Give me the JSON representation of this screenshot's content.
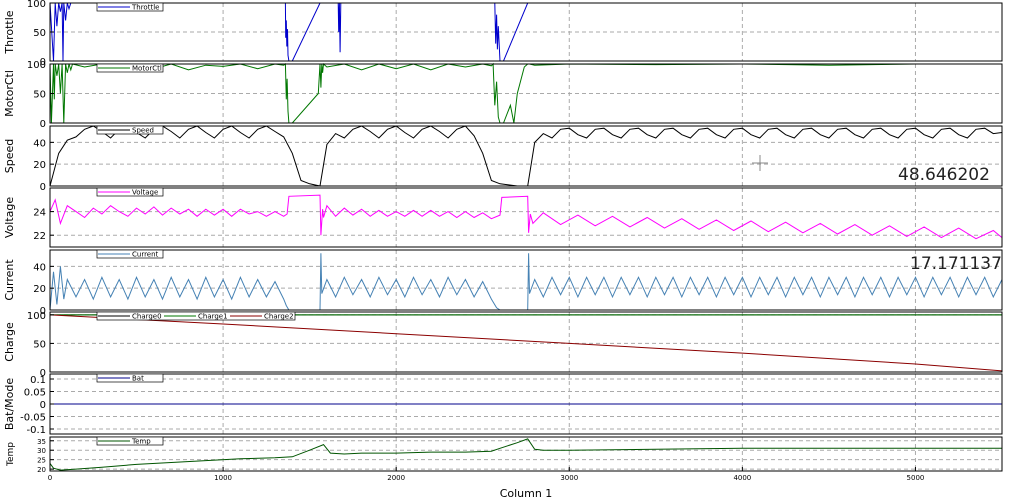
{
  "xlabel": "Column 1",
  "xlim": [
    0,
    5500
  ],
  "xticks": [
    0,
    1000,
    2000,
    3000,
    4000,
    5000
  ],
  "readouts": {
    "speed": "48.646202",
    "current": "17.171137"
  },
  "chart_data": [
    {
      "type": "line",
      "ylabel": "Throttle",
      "ylim": [
        0,
        100
      ],
      "yticks": [
        0,
        50,
        100
      ],
      "grid": true,
      "legend": "top-left",
      "series": [
        {
          "name": "Throttle",
          "color": "#0000cc",
          "x": [
            0,
            20,
            30,
            40,
            50,
            60,
            70,
            75,
            80,
            90,
            100,
            110,
            120,
            140,
            1360,
            1362,
            1365,
            1368,
            1372,
            1375,
            1380,
            1385,
            1400,
            1560,
            1665,
            1668,
            1672,
            1676,
            1680,
            1700,
            2570,
            2575,
            2580,
            2585,
            2590,
            2600,
            2610,
            2620,
            2760,
            5500
          ],
          "y": [
            100,
            0,
            100,
            60,
            100,
            85,
            100,
            0,
            100,
            70,
            100,
            90,
            100,
            100,
            100,
            40,
            70,
            25,
            55,
            10,
            0,
            0,
            0,
            100,
            100,
            50,
            100,
            15,
            100,
            100,
            100,
            30,
            80,
            20,
            60,
            0,
            0,
            0,
            100,
            100
          ]
        }
      ]
    },
    {
      "type": "line",
      "ylabel": "MotorCtl",
      "ylim": [
        0,
        100
      ],
      "yticks": [
        0,
        50,
        100
      ],
      "grid": true,
      "legend": "top-left",
      "series": [
        {
          "name": "MotorCtl",
          "color": "#007700",
          "x": [
            0,
            8,
            20,
            25,
            30,
            40,
            50,
            60,
            70,
            80,
            90,
            100,
            110,
            120,
            130,
            200,
            300,
            400,
            500,
            600,
            700,
            800,
            900,
            1000,
            1100,
            1200,
            1300,
            1350,
            1360,
            1365,
            1370,
            1375,
            1380,
            1400,
            1550,
            1560,
            1565,
            1570,
            1575,
            1580,
            1600,
            1700,
            1800,
            1900,
            2000,
            2100,
            2200,
            2300,
            2400,
            2500,
            2550,
            2560,
            2570,
            2580,
            2590,
            2600,
            2620,
            2660,
            2680,
            2700,
            2740,
            2760,
            2770,
            2800,
            3000,
            3500,
            4000,
            4500,
            5000,
            5500
          ],
          "y": [
            100,
            0,
            100,
            40,
            100,
            80,
            100,
            50,
            100,
            0,
            100,
            85,
            100,
            90,
            100,
            95,
            100,
            90,
            100,
            92,
            100,
            90,
            98,
            96,
            100,
            92,
            100,
            98,
            100,
            40,
            75,
            20,
            0,
            0,
            50,
            100,
            60,
            100,
            85,
            100,
            95,
            100,
            90,
            100,
            92,
            100,
            90,
            100,
            95,
            100,
            97,
            100,
            30,
            70,
            10,
            0,
            0,
            30,
            0,
            50,
            95,
            100,
            100,
            98,
            100,
            99,
            100,
            98,
            100,
            100
          ]
        }
      ]
    },
    {
      "type": "line",
      "ylabel": "Speed",
      "ylim": [
        0,
        55
      ],
      "yticks": [
        0,
        20,
        40
      ],
      "grid": true,
      "legend": "top-left",
      "series": [
        {
          "name": "Speed",
          "color": "#000000",
          "x": [
            0,
            50,
            100,
            150,
            200,
            250,
            300,
            350,
            400,
            450,
            500,
            550,
            600,
            650,
            700,
            750,
            800,
            850,
            900,
            950,
            1000,
            1050,
            1100,
            1150,
            1200,
            1250,
            1300,
            1350,
            1400,
            1450,
            1500,
            1560,
            1600,
            1650,
            1700,
            1750,
            1800,
            1850,
            1900,
            1950,
            2000,
            2050,
            2100,
            2150,
            2200,
            2250,
            2300,
            2350,
            2400,
            2450,
            2500,
            2550,
            2600,
            2650,
            2700,
            2760,
            2800,
            2850,
            2900,
            2950,
            3000,
            3050,
            3100,
            3150,
            3200,
            3250,
            3300,
            3350,
            3400,
            3450,
            3500,
            3550,
            3600,
            3650,
            3700,
            3750,
            3800,
            3850,
            3900,
            3950,
            4000,
            4050,
            4100,
            4150,
            4200,
            4250,
            4300,
            4350,
            4400,
            4450,
            4500,
            4550,
            4600,
            4650,
            4700,
            4750,
            4800,
            4850,
            4900,
            4950,
            5000,
            5050,
            5100,
            5150,
            5200,
            5250,
            5300,
            5350,
            5400,
            5450,
            5500
          ],
          "y": [
            0,
            30,
            42,
            45,
            52,
            55,
            50,
            44,
            52,
            55,
            49,
            44,
            52,
            55,
            50,
            44,
            52,
            55,
            49,
            44,
            52,
            55,
            49,
            44,
            52,
            55,
            50,
            45,
            30,
            5,
            2,
            0,
            38,
            48,
            44,
            52,
            55,
            50,
            44,
            52,
            55,
            49,
            44,
            52,
            55,
            50,
            44,
            52,
            55,
            46,
            30,
            5,
            2,
            1,
            0,
            0,
            40,
            48,
            44,
            52,
            53,
            47,
            44,
            52,
            53,
            47,
            44,
            52,
            53,
            47,
            44,
            52,
            53,
            47,
            44,
            52,
            53,
            47,
            44,
            52,
            53,
            47,
            44,
            52,
            53,
            47,
            44,
            52,
            53,
            47,
            44,
            52,
            53,
            47,
            44,
            52,
            53,
            47,
            44,
            52,
            53,
            47,
            44,
            52,
            53,
            47,
            44,
            52,
            53,
            48,
            49
          ]
        }
      ]
    },
    {
      "type": "line",
      "ylabel": "Voltage",
      "ylim": [
        21,
        26
      ],
      "yticks": [
        22,
        24
      ],
      "grid": true,
      "legend": "top-left",
      "series": [
        {
          "name": "Voltage",
          "color": "#ff00ff",
          "x": [
            0,
            30,
            60,
            100,
            150,
            200,
            250,
            300,
            350,
            400,
            450,
            500,
            550,
            600,
            650,
            700,
            750,
            800,
            850,
            900,
            950,
            1000,
            1050,
            1100,
            1150,
            1200,
            1250,
            1300,
            1350,
            1370,
            1380,
            1560,
            1565,
            1575,
            1580,
            1600,
            1650,
            1700,
            1750,
            1800,
            1850,
            1900,
            1950,
            2000,
            2050,
            2100,
            2150,
            2200,
            2250,
            2300,
            2350,
            2400,
            2450,
            2500,
            2550,
            2600,
            2610,
            2760,
            2765,
            2775,
            2790,
            2850,
            2950,
            3050,
            3150,
            3250,
            3350,
            3450,
            3550,
            3650,
            3750,
            3850,
            3950,
            4050,
            4150,
            4250,
            4350,
            4450,
            4550,
            4650,
            4750,
            4850,
            4950,
            5050,
            5150,
            5250,
            5350,
            5450,
            5500
          ],
          "y": [
            24,
            25,
            23,
            24.5,
            24,
            23.5,
            24.3,
            23.8,
            24.5,
            24,
            23.6,
            24.3,
            23.8,
            24.4,
            23.7,
            24.3,
            23.8,
            24.2,
            23.6,
            24.2,
            23.7,
            24.2,
            23.6,
            24.2,
            23.8,
            24,
            23.6,
            24,
            23.6,
            23.8,
            25.3,
            25.4,
            22,
            24.2,
            23.5,
            24.5,
            23.6,
            24.3,
            23.7,
            24.2,
            23.6,
            24.1,
            23.6,
            24,
            23.6,
            24.1,
            23.6,
            24.1,
            23.6,
            24,
            23.5,
            24,
            23.5,
            23.9,
            23.4,
            23.7,
            25.2,
            25.3,
            22.2,
            23.8,
            23,
            23.9,
            22.9,
            23.7,
            22.8,
            23.6,
            22.7,
            23.5,
            22.6,
            23.4,
            22.5,
            23.3,
            22.4,
            23.2,
            22.3,
            23.1,
            22.2,
            23,
            22.1,
            22.9,
            22,
            22.8,
            21.9,
            22.7,
            21.8,
            22.6,
            21.7,
            22.4,
            21.8
          ]
        }
      ]
    },
    {
      "type": "line",
      "ylabel": "Current",
      "ylim": [
        0,
        55
      ],
      "yticks": [
        0,
        20,
        40
      ],
      "grid": true,
      "legend": "top-left",
      "series": [
        {
          "name": "Current",
          "color": "#4682b4",
          "x": [
            0,
            20,
            40,
            60,
            80,
            100,
            150,
            200,
            250,
            300,
            350,
            400,
            450,
            500,
            550,
            600,
            650,
            700,
            750,
            800,
            850,
            900,
            950,
            1000,
            1050,
            1100,
            1150,
            1200,
            1250,
            1300,
            1350,
            1365,
            1380,
            1560,
            1565,
            1570,
            1600,
            1650,
            1700,
            1750,
            1800,
            1850,
            1900,
            1950,
            2000,
            2050,
            2100,
            2150,
            2200,
            2250,
            2300,
            2350,
            2400,
            2450,
            2500,
            2550,
            2580,
            2600,
            2760,
            2765,
            2770,
            2800,
            2850,
            2900,
            2950,
            3000,
            3050,
            3100,
            3150,
            3200,
            3250,
            3300,
            3350,
            3400,
            3450,
            3500,
            3550,
            3600,
            3650,
            3700,
            3750,
            3800,
            3850,
            3900,
            3950,
            4000,
            4050,
            4100,
            4150,
            4200,
            4250,
            4300,
            4350,
            4400,
            4450,
            4500,
            4550,
            4600,
            4650,
            4700,
            4750,
            4800,
            4850,
            4900,
            4950,
            5000,
            5050,
            5100,
            5150,
            5200,
            5250,
            5300,
            5350,
            5400,
            5450,
            5500
          ],
          "y": [
            0,
            35,
            5,
            40,
            10,
            28,
            12,
            28,
            10,
            30,
            12,
            28,
            10,
            30,
            12,
            28,
            10,
            30,
            12,
            28,
            10,
            30,
            12,
            28,
            10,
            30,
            12,
            28,
            12,
            26,
            10,
            4,
            0,
            0,
            52,
            15,
            28,
            12,
            30,
            14,
            28,
            12,
            30,
            14,
            28,
            12,
            30,
            14,
            28,
            12,
            30,
            14,
            28,
            12,
            26,
            10,
            2,
            0,
            0,
            52,
            15,
            28,
            12,
            30,
            14,
            30,
            12,
            30,
            14,
            30,
            12,
            30,
            14,
            30,
            12,
            30,
            14,
            30,
            12,
            30,
            14,
            30,
            12,
            30,
            14,
            30,
            12,
            30,
            14,
            30,
            12,
            30,
            14,
            30,
            12,
            30,
            14,
            30,
            12,
            30,
            14,
            30,
            12,
            30,
            14,
            30,
            12,
            30,
            14,
            30,
            12,
            30,
            14,
            30,
            12,
            28
          ]
        }
      ]
    },
    {
      "type": "line",
      "ylabel": "Charge",
      "ylim": [
        0,
        105
      ],
      "yticks": [
        0,
        50,
        100
      ],
      "grid": true,
      "legend": "top-left",
      "series": [
        {
          "name": "Charge0",
          "color": "#000000",
          "x": [
            0,
            5500
          ],
          "y": [
            100,
            100
          ]
        },
        {
          "name": "Charge1",
          "color": "#007700",
          "x": [
            0,
            5500
          ],
          "y": [
            100,
            100
          ]
        },
        {
          "name": "Charge2",
          "color": "#8b0000",
          "x": [
            0,
            1000,
            2000,
            3000,
            4000,
            5000,
            5500
          ],
          "y": [
            100,
            84,
            67,
            50,
            33,
            14,
            2
          ]
        }
      ]
    },
    {
      "type": "line",
      "ylabel": "Bat/Mode",
      "ylim": [
        -0.12,
        0.12
      ],
      "yticks": [
        -0.1,
        -0.05,
        0,
        0.05,
        0.1
      ],
      "grid": true,
      "legend": "top-left",
      "series": [
        {
          "name": "Bat",
          "color": "#00008b",
          "x": [
            0,
            5500
          ],
          "y": [
            0,
            0
          ]
        }
      ]
    },
    {
      "type": "line",
      "ylabel": "Temp",
      "ylim": [
        19,
        37
      ],
      "yticks": [
        20,
        25,
        30,
        35
      ],
      "grid": true,
      "legend": "top-left",
      "series": [
        {
          "name": "Temp",
          "color": "#005500",
          "x": [
            0,
            20,
            60,
            150,
            300,
            500,
            700,
            900,
            1100,
            1300,
            1400,
            1500,
            1580,
            1620,
            1700,
            1800,
            1900,
            2000,
            2200,
            2400,
            2550,
            2600,
            2700,
            2760,
            2800,
            2850,
            3000,
            3500,
            4000,
            4500,
            5000,
            5500
          ],
          "y": [
            23,
            20.5,
            19.5,
            20,
            21,
            22.5,
            23.5,
            24.5,
            25.5,
            26,
            26.5,
            30,
            33,
            28.5,
            28,
            28.5,
            28.5,
            28.5,
            29,
            29,
            29.5,
            31,
            34,
            36,
            30.5,
            30,
            30,
            30.5,
            31,
            31,
            31,
            31
          ]
        }
      ]
    }
  ]
}
